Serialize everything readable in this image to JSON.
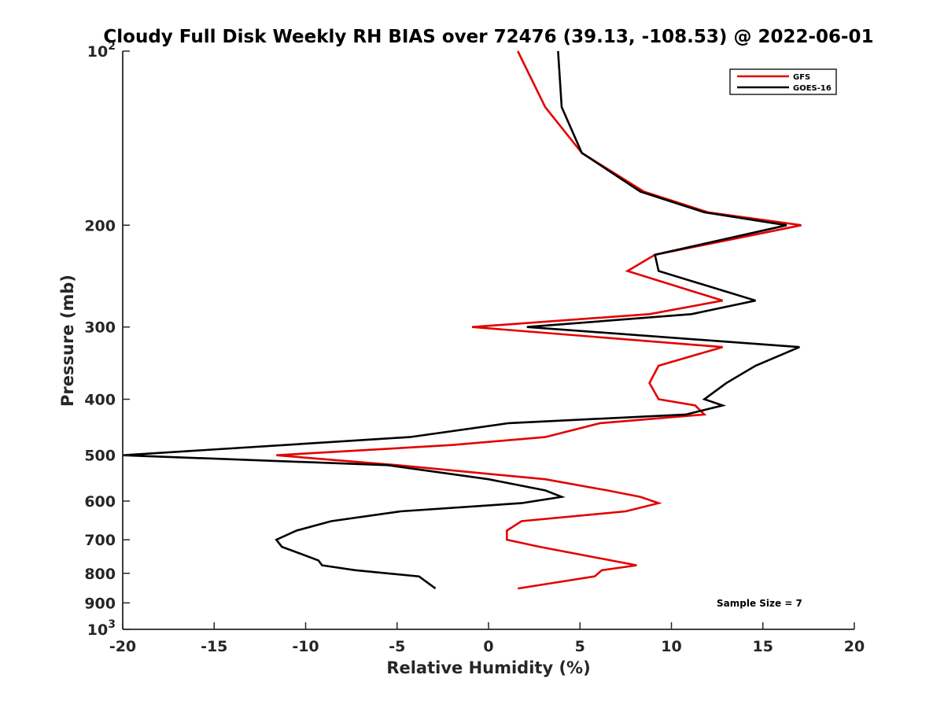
{
  "chart_data": {
    "type": "line",
    "title": "Cloudy Full Disk Weekly RH BIAS over 72476 (39.13, -108.53) @ 2022-06-01",
    "xlabel": "Relative Humidity (%)",
    "ylabel": "Pressure (mb)",
    "xlim": [
      -20,
      20
    ],
    "ylim": [
      1000,
      100
    ],
    "y_scale": "log",
    "y_reversed": true,
    "grid": false,
    "legend_position": "top-right",
    "x_ticks": [
      "-20",
      "-15",
      "-10",
      "-5",
      "0",
      "5",
      "10",
      "15",
      "20"
    ],
    "x_tick_values": [
      -20,
      -15,
      -10,
      -5,
      0,
      5,
      10,
      15,
      20
    ],
    "y_ticks": [
      {
        "value": 100,
        "base": "10",
        "exp": "2"
      },
      {
        "value": 200,
        "label": "200"
      },
      {
        "value": 300,
        "label": "300"
      },
      {
        "value": 400,
        "label": "400"
      },
      {
        "value": 500,
        "label": "500"
      },
      {
        "value": 600,
        "label": "600"
      },
      {
        "value": 700,
        "label": "700"
      },
      {
        "value": 800,
        "label": "800"
      },
      {
        "value": 900,
        "label": "900"
      },
      {
        "value": 1000,
        "base": "10",
        "exp": "3"
      }
    ],
    "series": [
      {
        "name": "GFS",
        "color": "#e30000",
        "points": [
          [
            1.6,
            100
          ],
          [
            3.1,
            125
          ],
          [
            5.1,
            150
          ],
          [
            8.5,
            175
          ],
          [
            12.0,
            190
          ],
          [
            17.1,
            200
          ],
          [
            9.1,
            225
          ],
          [
            7.6,
            240
          ],
          [
            12.8,
            270
          ],
          [
            8.8,
            285
          ],
          [
            -0.9,
            300
          ],
          [
            12.8,
            325
          ],
          [
            9.3,
            350
          ],
          [
            8.8,
            375
          ],
          [
            9.3,
            400
          ],
          [
            11.3,
            410
          ],
          [
            11.8,
            425
          ],
          [
            6.1,
            440
          ],
          [
            3.1,
            465
          ],
          [
            -2.0,
            480
          ],
          [
            -11.6,
            500
          ],
          [
            -5.0,
            520
          ],
          [
            3.1,
            550
          ],
          [
            6.5,
            575
          ],
          [
            8.3,
            590
          ],
          [
            9.3,
            605
          ],
          [
            7.5,
            625
          ],
          [
            1.8,
            650
          ],
          [
            1.0,
            675
          ],
          [
            1.0,
            700
          ],
          [
            2.8,
            720
          ],
          [
            8.1,
            775
          ],
          [
            6.2,
            790
          ],
          [
            5.8,
            810
          ],
          [
            1.6,
            850
          ]
        ]
      },
      {
        "name": "GOES-16",
        "color": "#000000",
        "points": [
          [
            3.8,
            100
          ],
          [
            4.0,
            125
          ],
          [
            5.1,
            150
          ],
          [
            8.3,
            175
          ],
          [
            11.8,
            190
          ],
          [
            16.3,
            200
          ],
          [
            9.1,
            225
          ],
          [
            9.3,
            240
          ],
          [
            14.6,
            270
          ],
          [
            11.1,
            285
          ],
          [
            2.1,
            300
          ],
          [
            17.0,
            325
          ],
          [
            14.6,
            350
          ],
          [
            13.0,
            375
          ],
          [
            11.8,
            400
          ],
          [
            12.8,
            410
          ],
          [
            10.8,
            425
          ],
          [
            1.1,
            440
          ],
          [
            -4.3,
            465
          ],
          [
            -20.0,
            500
          ],
          [
            -5.5,
            520
          ],
          [
            0.0,
            550
          ],
          [
            3.1,
            575
          ],
          [
            4.0,
            590
          ],
          [
            1.8,
            605
          ],
          [
            -4.8,
            625
          ],
          [
            -8.6,
            650
          ],
          [
            -10.5,
            675
          ],
          [
            -11.6,
            700
          ],
          [
            -11.3,
            720
          ],
          [
            -9.3,
            760
          ],
          [
            -9.1,
            775
          ],
          [
            -7.3,
            790
          ],
          [
            -3.8,
            810
          ],
          [
            -2.9,
            850
          ]
        ]
      }
    ],
    "annotations": [
      {
        "text": "Sample Size = 7"
      }
    ]
  }
}
